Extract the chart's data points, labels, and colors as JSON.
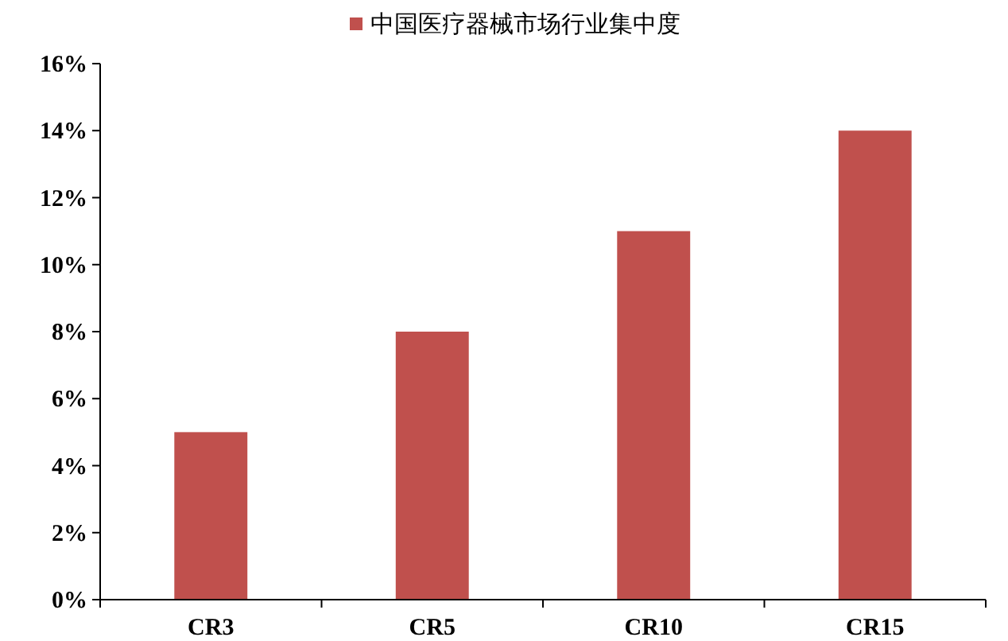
{
  "chart_data": {
    "type": "bar",
    "categories": [
      "CR3",
      "CR5",
      "CR10",
      "CR15"
    ],
    "series": [
      {
        "name": "中国医疗器械市场行业集中度",
        "color": "#c0504d",
        "values": [
          5,
          8,
          11,
          14
        ]
      }
    ],
    "ylim": [
      0,
      16
    ],
    "yticks": [
      {
        "value": 0,
        "label": "0%"
      },
      {
        "value": 2,
        "label": "2%"
      },
      {
        "value": 4,
        "label": "4%"
      },
      {
        "value": 6,
        "label": "6%"
      },
      {
        "value": 8,
        "label": "8%"
      },
      {
        "value": 10,
        "label": "10%"
      },
      {
        "value": 12,
        "label": "12%"
      },
      {
        "value": 14,
        "label": "14%"
      },
      {
        "value": 16,
        "label": "16%"
      }
    ],
    "grid": false,
    "legend": "top"
  }
}
